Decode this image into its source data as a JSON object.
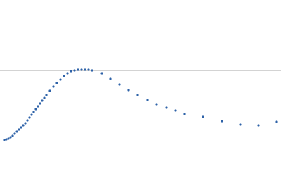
{
  "chart_data": {
    "type": "scatter",
    "x": [
      0.09,
      0.135,
      0.18,
      0.225,
      0.27,
      0.315,
      0.36,
      0.405,
      0.45,
      0.495,
      0.54,
      0.585,
      0.63,
      0.675,
      0.72,
      0.765,
      0.81,
      0.855,
      0.9,
      0.945,
      0.99,
      1.065,
      1.14,
      1.215,
      1.29,
      1.365,
      1.44,
      1.515,
      1.59,
      1.665,
      1.74,
      1.815,
      1.89,
      1.965,
      2.175,
      2.355,
      2.55,
      2.745,
      2.94,
      3.15,
      3.345,
      3.555,
      3.75,
      3.945,
      4.335,
      4.74,
      5.13,
      5.52,
      5.91
    ],
    "series": [
      {
        "color": "#2e62a8",
        "values": [
          0.011,
          0.022,
          0.033,
          0.055,
          0.077,
          0.11,
          0.144,
          0.177,
          0.21,
          0.243,
          0.276,
          0.32,
          0.364,
          0.408,
          0.453,
          0.497,
          0.541,
          0.585,
          0.629,
          0.673,
          0.718,
          0.784,
          0.85,
          0.905,
          0.96,
          1.016,
          1.06,
          1.093,
          1.104,
          1.115,
          1.115,
          1.115,
          1.115,
          1.104,
          1.06,
          0.972,
          0.883,
          0.795,
          0.718,
          0.64,
          0.574,
          0.519,
          0.475,
          0.42,
          0.375,
          0.309,
          0.254,
          0.243,
          0.298
        ]
      }
    ],
    "xlim": [
      0,
      6
    ],
    "ylim": [
      0,
      2.208
    ],
    "reference_lines": {
      "x": 1.732,
      "y": 1.104
    },
    "reference_color": "#d3d3d3"
  }
}
